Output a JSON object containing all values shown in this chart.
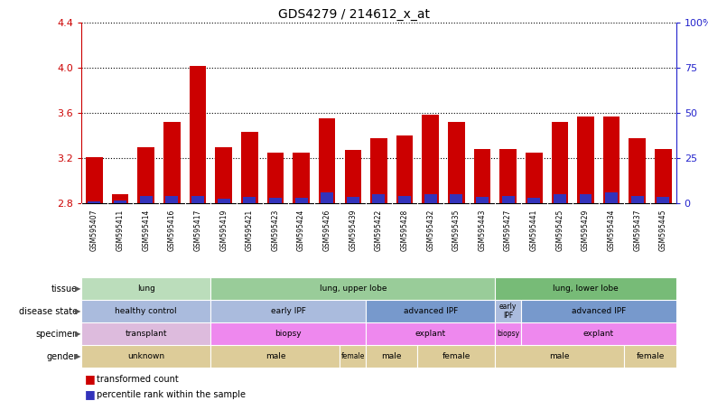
{
  "title": "GDS4279 / 214612_x_at",
  "samples": [
    "GSM595407",
    "GSM595411",
    "GSM595414",
    "GSM595416",
    "GSM595417",
    "GSM595419",
    "GSM595421",
    "GSM595423",
    "GSM595424",
    "GSM595426",
    "GSM595439",
    "GSM595422",
    "GSM595428",
    "GSM595432",
    "GSM595435",
    "GSM595443",
    "GSM595427",
    "GSM595441",
    "GSM595425",
    "GSM595429",
    "GSM595434",
    "GSM595437",
    "GSM595445"
  ],
  "transformed_count": [
    3.21,
    2.88,
    3.3,
    3.52,
    4.02,
    3.3,
    3.43,
    3.25,
    3.25,
    3.55,
    3.27,
    3.38,
    3.4,
    3.58,
    3.52,
    3.28,
    3.28,
    3.25,
    3.52,
    3.57,
    3.57,
    3.38,
    3.28
  ],
  "percentile_rank": [
    2,
    3,
    8,
    8,
    8,
    5,
    7,
    6,
    6,
    12,
    7,
    10,
    8,
    10,
    10,
    7,
    8,
    6,
    10,
    10,
    12,
    8,
    7
  ],
  "ymin": 2.8,
  "ymax": 4.4,
  "y_ticks": [
    2.8,
    3.2,
    3.6,
    4.0,
    4.4
  ],
  "right_yticks": [
    0,
    25,
    50,
    75,
    100
  ],
  "right_yticklabels": [
    "0",
    "25",
    "50",
    "75",
    "100%"
  ],
  "bar_color_red": "#cc0000",
  "bar_color_blue": "#3333bb",
  "tick_color_left": "#cc0000",
  "tick_color_right": "#2222cc",
  "tissue_groups": [
    {
      "label": "lung",
      "start": 0,
      "end": 4,
      "color": "#bbddbb"
    },
    {
      "label": "lung, upper lobe",
      "start": 5,
      "end": 15,
      "color": "#99cc99"
    },
    {
      "label": "lung, lower lobe",
      "start": 16,
      "end": 22,
      "color": "#77bb77"
    }
  ],
  "disease_groups": [
    {
      "label": "healthy control",
      "start": 0,
      "end": 4,
      "color": "#aabbdd"
    },
    {
      "label": "early IPF",
      "start": 5,
      "end": 10,
      "color": "#aabbdd"
    },
    {
      "label": "advanced IPF",
      "start": 11,
      "end": 15,
      "color": "#7799cc"
    },
    {
      "label": "early IPF",
      "start": 16,
      "end": 16,
      "color": "#aabbdd"
    },
    {
      "label": "advanced IPF",
      "start": 17,
      "end": 22,
      "color": "#7799cc"
    }
  ],
  "specimen_groups": [
    {
      "label": "transplant",
      "start": 0,
      "end": 4,
      "color": "#ddbbdd"
    },
    {
      "label": "biopsy",
      "start": 5,
      "end": 10,
      "color": "#ee88ee"
    },
    {
      "label": "explant",
      "start": 11,
      "end": 15,
      "color": "#ee88ee"
    },
    {
      "label": "biopsy",
      "start": 16,
      "end": 16,
      "color": "#ee88ee"
    },
    {
      "label": "explant",
      "start": 17,
      "end": 22,
      "color": "#ee88ee"
    }
  ],
  "gender_groups": [
    {
      "label": "unknown",
      "start": 0,
      "end": 4,
      "color": "#ddcc99"
    },
    {
      "label": "male",
      "start": 5,
      "end": 9,
      "color": "#ddcc99"
    },
    {
      "label": "female",
      "start": 10,
      "end": 10,
      "color": "#ddcc99"
    },
    {
      "label": "male",
      "start": 11,
      "end": 12,
      "color": "#ddcc99"
    },
    {
      "label": "female",
      "start": 13,
      "end": 15,
      "color": "#ddcc99"
    },
    {
      "label": "male",
      "start": 16,
      "end": 20,
      "color": "#ddcc99"
    },
    {
      "label": "female",
      "start": 21,
      "end": 22,
      "color": "#ddcc99"
    }
  ],
  "row_labels": [
    "tissue",
    "disease state",
    "specimen",
    "gender"
  ],
  "legend_items": [
    {
      "label": "transformed count",
      "color": "#cc0000"
    },
    {
      "label": "percentile rank within the sample",
      "color": "#3333bb"
    }
  ]
}
